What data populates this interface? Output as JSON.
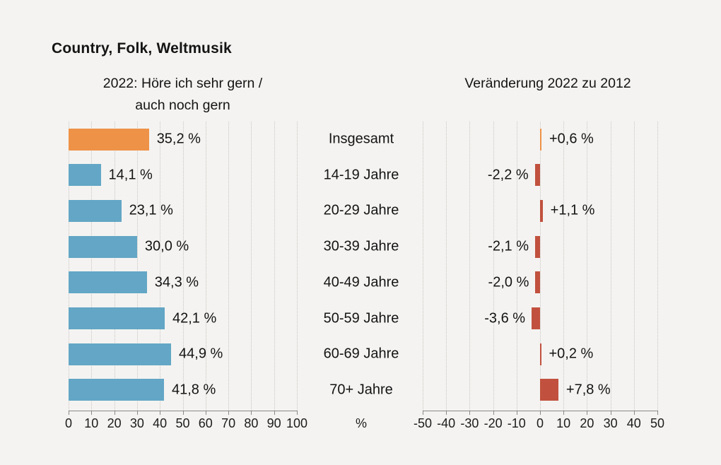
{
  "title": "Country, Folk, Weltmusik",
  "unit_label": "%",
  "colors": {
    "background": "#f4f3f1",
    "highlight_bar": "#ee9247",
    "left_bar": "#63a6c5",
    "right_bar": "#c1513e",
    "grid": "#c9c6c2",
    "axis": "#8c8a88",
    "text": "#141414"
  },
  "categories": [
    "Insgesamt",
    "14-19 Jahre",
    "20-29 Jahre",
    "30-39 Jahre",
    "40-49 Jahre",
    "50-59 Jahre",
    "60-69 Jahre",
    "70+ Jahre"
  ],
  "chart_data": [
    {
      "type": "bar",
      "orientation": "horizontal",
      "title": "2022: Höre ich sehr gern / auch noch gern",
      "title_lines": [
        "2022: Höre ich sehr gern /",
        "auch noch gern"
      ],
      "categories": [
        "Insgesamt",
        "14-19 Jahre",
        "20-29 Jahre",
        "30-39 Jahre",
        "40-49 Jahre",
        "50-59 Jahre",
        "60-69 Jahre",
        "70+ Jahre"
      ],
      "values": [
        35.2,
        14.1,
        23.1,
        30.0,
        34.3,
        42.1,
        44.9,
        41.8
      ],
      "value_labels": [
        "35,2 %",
        "14,1 %",
        "23,1 %",
        "30,0 %",
        "34,3 %",
        "42,1 %",
        "44,9 %",
        "41,8 %"
      ],
      "xlim": [
        0,
        100
      ],
      "tick_values": [
        0,
        10,
        20,
        30,
        40,
        50,
        60,
        70,
        80,
        90,
        100
      ],
      "tick_labels": [
        "0",
        "10",
        "20",
        "30",
        "40",
        "50",
        "60",
        "70",
        "80",
        "90",
        "100"
      ],
      "grid": true,
      "legend": "none",
      "highlight_index": 0
    },
    {
      "type": "bar",
      "orientation": "horizontal",
      "title": "Veränderung 2022 zu 2012",
      "title_lines": [
        "Veränderung 2022 zu 2012"
      ],
      "categories": [
        "Insgesamt",
        "14-19 Jahre",
        "20-29 Jahre",
        "30-39 Jahre",
        "40-49 Jahre",
        "50-59 Jahre",
        "60-69 Jahre",
        "70+ Jahre"
      ],
      "values": [
        0.6,
        -2.2,
        1.1,
        -2.1,
        -2.0,
        -3.6,
        0.2,
        7.8
      ],
      "value_labels": [
        "+0,6 %",
        "-2,2 %",
        "+1,1 %",
        "-2,1 %",
        "-2,0 %",
        "-3,6 %",
        "+0,2 %",
        "+7,8 %"
      ],
      "xlim": [
        -50,
        50
      ],
      "tick_values": [
        -50,
        -40,
        -30,
        -20,
        -10,
        0,
        10,
        20,
        30,
        40,
        50
      ],
      "tick_labels": [
        "-50",
        "-40",
        "-30",
        "-20",
        "-10",
        "0",
        "10",
        "20",
        "30",
        "40",
        "50"
      ],
      "grid": true,
      "legend": "none",
      "highlight_index": 0
    }
  ]
}
